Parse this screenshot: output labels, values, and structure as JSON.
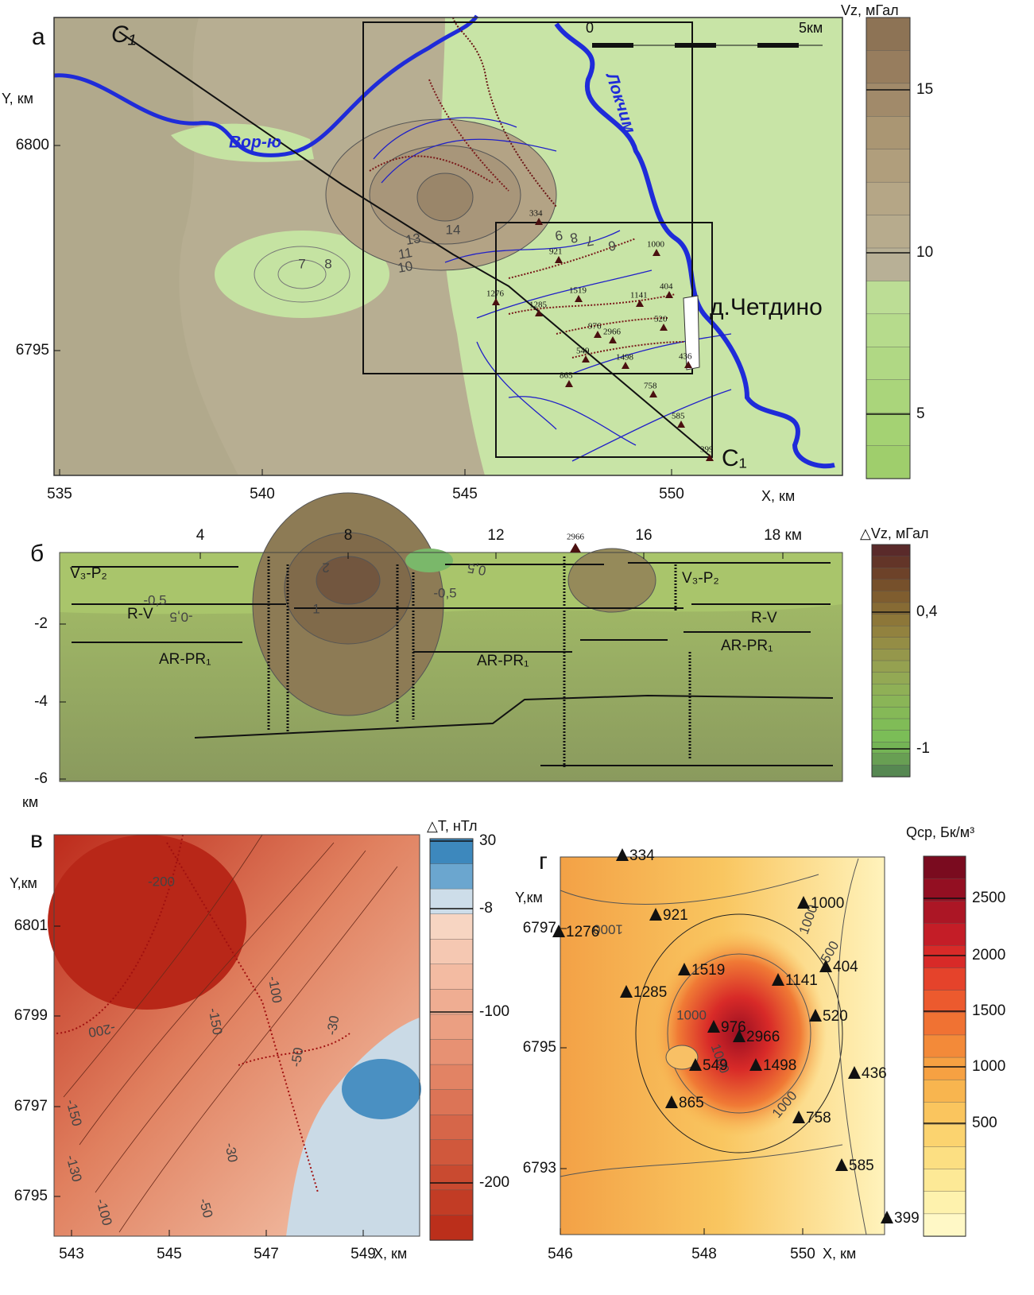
{
  "panel_a": {
    "label": "а",
    "y_axis_label": "Y, км",
    "x_axis_label": "X, км",
    "xticks": [
      535,
      540,
      545,
      550
    ],
    "yticks": [
      6800,
      6795
    ],
    "profile_labels": [
      "C₁",
      "C₁"
    ],
    "rivers": [
      "Вор-ю",
      "Локчим"
    ],
    "village": "д.Четдино",
    "scale_bar": [
      "0",
      "5км"
    ],
    "contour_labels": [
      "7",
      "8",
      "10",
      "11",
      "13",
      "14",
      "9",
      "8",
      "7",
      "6"
    ],
    "stations": [
      "334",
      "1000",
      "921",
      "1276",
      "1285",
      "1519",
      "1141",
      "404",
      "520",
      "976",
      "2966",
      "549",
      "1498",
      "436",
      "865",
      "758",
      "585",
      "399"
    ],
    "colorbar": {
      "title": "Vz, мГал",
      "ticks": [
        15,
        10,
        5
      ],
      "colors": [
        "#8d7355",
        "#977d5e",
        "#a18a6a",
        "#aa9673",
        "#b09e7c",
        "#b5a686",
        "#b7ab8d",
        "#b8b096",
        "#bcdd95",
        "#b6db8c",
        "#b0d884",
        "#aad57b",
        "#a4d273",
        "#9fce6c"
      ]
    }
  },
  "panel_b": {
    "label": "б",
    "xticks": [
      4,
      8,
      12,
      16,
      {
        "value": 18,
        "label": "18 км"
      }
    ],
    "yticks": [
      -2,
      -4,
      -6
    ],
    "depth_unit": "км",
    "station": "2966",
    "layer_labels": [
      "V₃-P₂",
      "V₃-P₂",
      "R-V",
      "R-V",
      "AR-PR₁",
      "AR-PR₁",
      "AR-PR₁"
    ],
    "contour_labels": [
      "-0,5",
      "-0,5",
      "0,5",
      "-0,5",
      "1",
      "2"
    ],
    "colorbar": {
      "title": "△Vz,  мГал",
      "ticks": [
        {
          "value": 0.4,
          "label": "0,4"
        },
        -1
      ],
      "colors": [
        "#5a2a2a",
        "#633528",
        "#6d4229",
        "#76502b",
        "#7f5d2f",
        "#876b34",
        "#8d7739",
        "#92823f",
        "#948d45",
        "#95974b",
        "#95a150",
        "#93a954",
        "#8fb056",
        "#8ab557",
        "#85b957",
        "#80bc57",
        "#7bbd57",
        "#74b455",
        "#689f53",
        "#568852"
      ]
    }
  },
  "panel_v": {
    "label": "в",
    "y_axis_label": "Y,км",
    "x_axis_label": "X, км",
    "xticks": [
      543,
      545,
      547,
      549
    ],
    "yticks": [
      6801,
      6799,
      6797,
      6795
    ],
    "contour_labels": [
      "-200",
      "-200",
      "-150",
      "-150",
      "-130",
      "-100",
      "-100",
      "-50",
      "-50",
      "-30",
      "-30"
    ],
    "colorbar": {
      "title": "△T, нТл",
      "ticks": [
        30,
        -8,
        -100,
        -200
      ],
      "colors": [
        "#3d88bd",
        "#6ba6cf",
        "#cddde9",
        "#f7d5c2",
        "#f5c8b2",
        "#f3bba2",
        "#efad92",
        "#eb9f82",
        "#e79173",
        "#e28364",
        "#dc7456",
        "#d66649",
        "#d0583c",
        "#c94a30",
        "#c23c25",
        "#bb2f1b"
      ]
    }
  },
  "panel_g": {
    "label": "г",
    "y_axis_label": "Y,км",
    "x_axis_label": "X, км",
    "xticks": [
      546,
      548,
      550
    ],
    "yticks": [
      6797,
      6795,
      6793
    ],
    "contour_labels": [
      "1000",
      "1000",
      "500",
      "1000",
      "1000",
      "1000"
    ],
    "stations": [
      "334",
      "921",
      "1000",
      "404",
      "1276",
      "1519",
      "1141",
      "1285",
      "520",
      "976",
      "2966",
      "549",
      "1498",
      "436",
      "865",
      "758",
      "585",
      "399"
    ],
    "colorbar": {
      "title": "Qср, Бк/м³",
      "ticks": [
        2500,
        2000,
        1500,
        1000,
        500
      ],
      "colors": [
        "#7a0b1f",
        "#930f22",
        "#ac1625",
        "#c41d27",
        "#d82a28",
        "#e5432b",
        "#ec5a2e",
        "#f07233",
        "#f38a39",
        "#f6a142",
        "#f8b54f",
        "#fac55e",
        "#fbd36f",
        "#fcdf82",
        "#fde996",
        "#fef2ad",
        "#fff8c6"
      ]
    }
  }
}
